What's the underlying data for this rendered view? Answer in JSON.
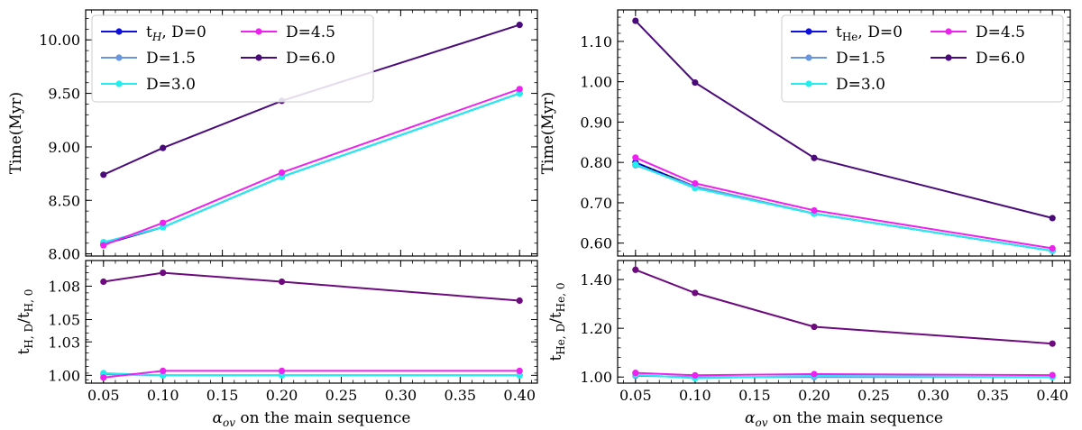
{
  "chart_data": [
    {
      "type": "line",
      "panel": "top-left",
      "x": [
        0.05,
        0.1,
        0.2,
        0.4
      ],
      "ylabel": "Time(Myr)",
      "xlabel": "",
      "ylim": [
        7.98,
        10.28
      ],
      "yticks": [
        "8.00",
        "8.50",
        "9.00",
        "9.50",
        "10.00"
      ],
      "legend_position": "top-left",
      "series": [
        {
          "name": "t_H, D=0",
          "label_main": "t",
          "label_sub": "H",
          "label_rest": ", D=0",
          "sub_italic": true,
          "color": "#1010dd",
          "values": [
            8.09,
            8.25,
            8.72,
            9.5
          ]
        },
        {
          "name": "D=1.5",
          "label_main": "D=1.5",
          "color": "#6a96e0",
          "values": [
            8.1,
            8.25,
            8.72,
            9.5
          ]
        },
        {
          "name": "D=3.0",
          "label_main": "D=3.0",
          "color": "#22eeee",
          "values": [
            8.11,
            8.25,
            8.72,
            9.5
          ]
        },
        {
          "name": "D=4.5",
          "label_main": "D=4.5",
          "color": "#ee22ee",
          "values": [
            8.08,
            8.29,
            8.76,
            9.54
          ]
        },
        {
          "name": "D=6.0",
          "label_main": "D=6.0",
          "color": "#4b0a7a",
          "values": [
            8.74,
            8.99,
            9.43,
            10.14
          ]
        }
      ]
    },
    {
      "type": "line",
      "panel": "bottom-left",
      "x": [
        0.05,
        0.1,
        0.2,
        0.4
      ],
      "xlabel_main": "α",
      "xlabel_sub": "ov",
      "xlabel_rest": " on the main sequence",
      "ylabel_main": "t",
      "ylabel_sub1": "H, D",
      "ylabel_mid": "/t",
      "ylabel_sub2": "H, 0",
      "ylim": [
        0.993,
        1.103
      ],
      "yticks": [
        "1.00",
        "1.03",
        "1.05",
        "1.08"
      ],
      "xticks": [
        "0.05",
        "0.10",
        "0.15",
        "0.20",
        "0.25",
        "0.30",
        "0.35",
        "0.40"
      ],
      "series": [
        {
          "name": "D=1.5",
          "color": "#6a96e0",
          "values": [
            1.001,
            1.0,
            1.0,
            1.0
          ]
        },
        {
          "name": "D=3.0",
          "color": "#22eeee",
          "values": [
            1.002,
            1.0,
            1.0,
            1.0
          ]
        },
        {
          "name": "D=4.5",
          "color": "#ee22ee",
          "values": [
            0.998,
            1.004,
            1.004,
            1.004
          ]
        },
        {
          "name": "D=6.0",
          "color": "#6c0a7e",
          "values": [
            1.084,
            1.092,
            1.084,
            1.067
          ]
        }
      ]
    },
    {
      "type": "line",
      "panel": "top-right",
      "x": [
        0.05,
        0.1,
        0.2,
        0.4
      ],
      "ylabel": "Time(Myr)",
      "xlabel": "",
      "ylim": [
        0.568,
        1.178
      ],
      "yticks": [
        "0.60",
        "0.70",
        "0.80",
        "0.90",
        "1.00",
        "1.10"
      ],
      "legend_position": "top-right",
      "series": [
        {
          "name": "t_He, D=0",
          "label_main": "t",
          "label_sub": "He",
          "label_rest": ", D=0",
          "sub_italic": false,
          "color": "#1010dd",
          "values": [
            0.8,
            0.74,
            0.673,
            0.581
          ]
        },
        {
          "name": "D=1.5",
          "label_main": "D=1.5",
          "color": "#6a96e0",
          "values": [
            0.793,
            0.74,
            0.673,
            0.581
          ]
        },
        {
          "name": "D=3.0",
          "label_main": "D=3.0",
          "color": "#22eeee",
          "values": [
            0.795,
            0.736,
            0.673,
            0.581
          ]
        },
        {
          "name": "D=4.5",
          "label_main": "D=4.5",
          "color": "#ee22ee",
          "values": [
            0.812,
            0.748,
            0.681,
            0.587
          ]
        },
        {
          "name": "D=6.0",
          "label_main": "D=6.0",
          "color": "#4b0a7a",
          "values": [
            1.151,
            0.998,
            0.811,
            0.662
          ]
        }
      ]
    },
    {
      "type": "line",
      "panel": "bottom-right",
      "x": [
        0.05,
        0.1,
        0.2,
        0.4
      ],
      "xlabel_main": "α",
      "xlabel_sub": "ov",
      "xlabel_rest": " on the main sequence",
      "ylabel_main": "t",
      "ylabel_sub1": "He, D",
      "ylabel_mid": "/t",
      "ylabel_sub2": "He, 0",
      "ylim": [
        0.975,
        1.478
      ],
      "yticks": [
        "1.00",
        "1.20",
        "1.40"
      ],
      "xticks": [
        "0.05",
        "0.10",
        "0.15",
        "0.20",
        "0.25",
        "0.30",
        "0.35",
        "0.40"
      ],
      "series": [
        {
          "name": "D=1.5",
          "color": "#6a96e0",
          "values": [
            1.005,
            1.0,
            1.0,
            1.0
          ]
        },
        {
          "name": "D=3.0",
          "color": "#22eeee",
          "values": [
            1.01,
            0.995,
            1.005,
            1.0
          ]
        },
        {
          "name": "D=4.5",
          "color": "#ee22ee",
          "values": [
            1.017,
            1.007,
            1.012,
            1.008
          ]
        },
        {
          "name": "D=6.0",
          "color": "#6c0a7e",
          "values": [
            1.44,
            1.345,
            1.206,
            1.137
          ]
        }
      ]
    }
  ]
}
